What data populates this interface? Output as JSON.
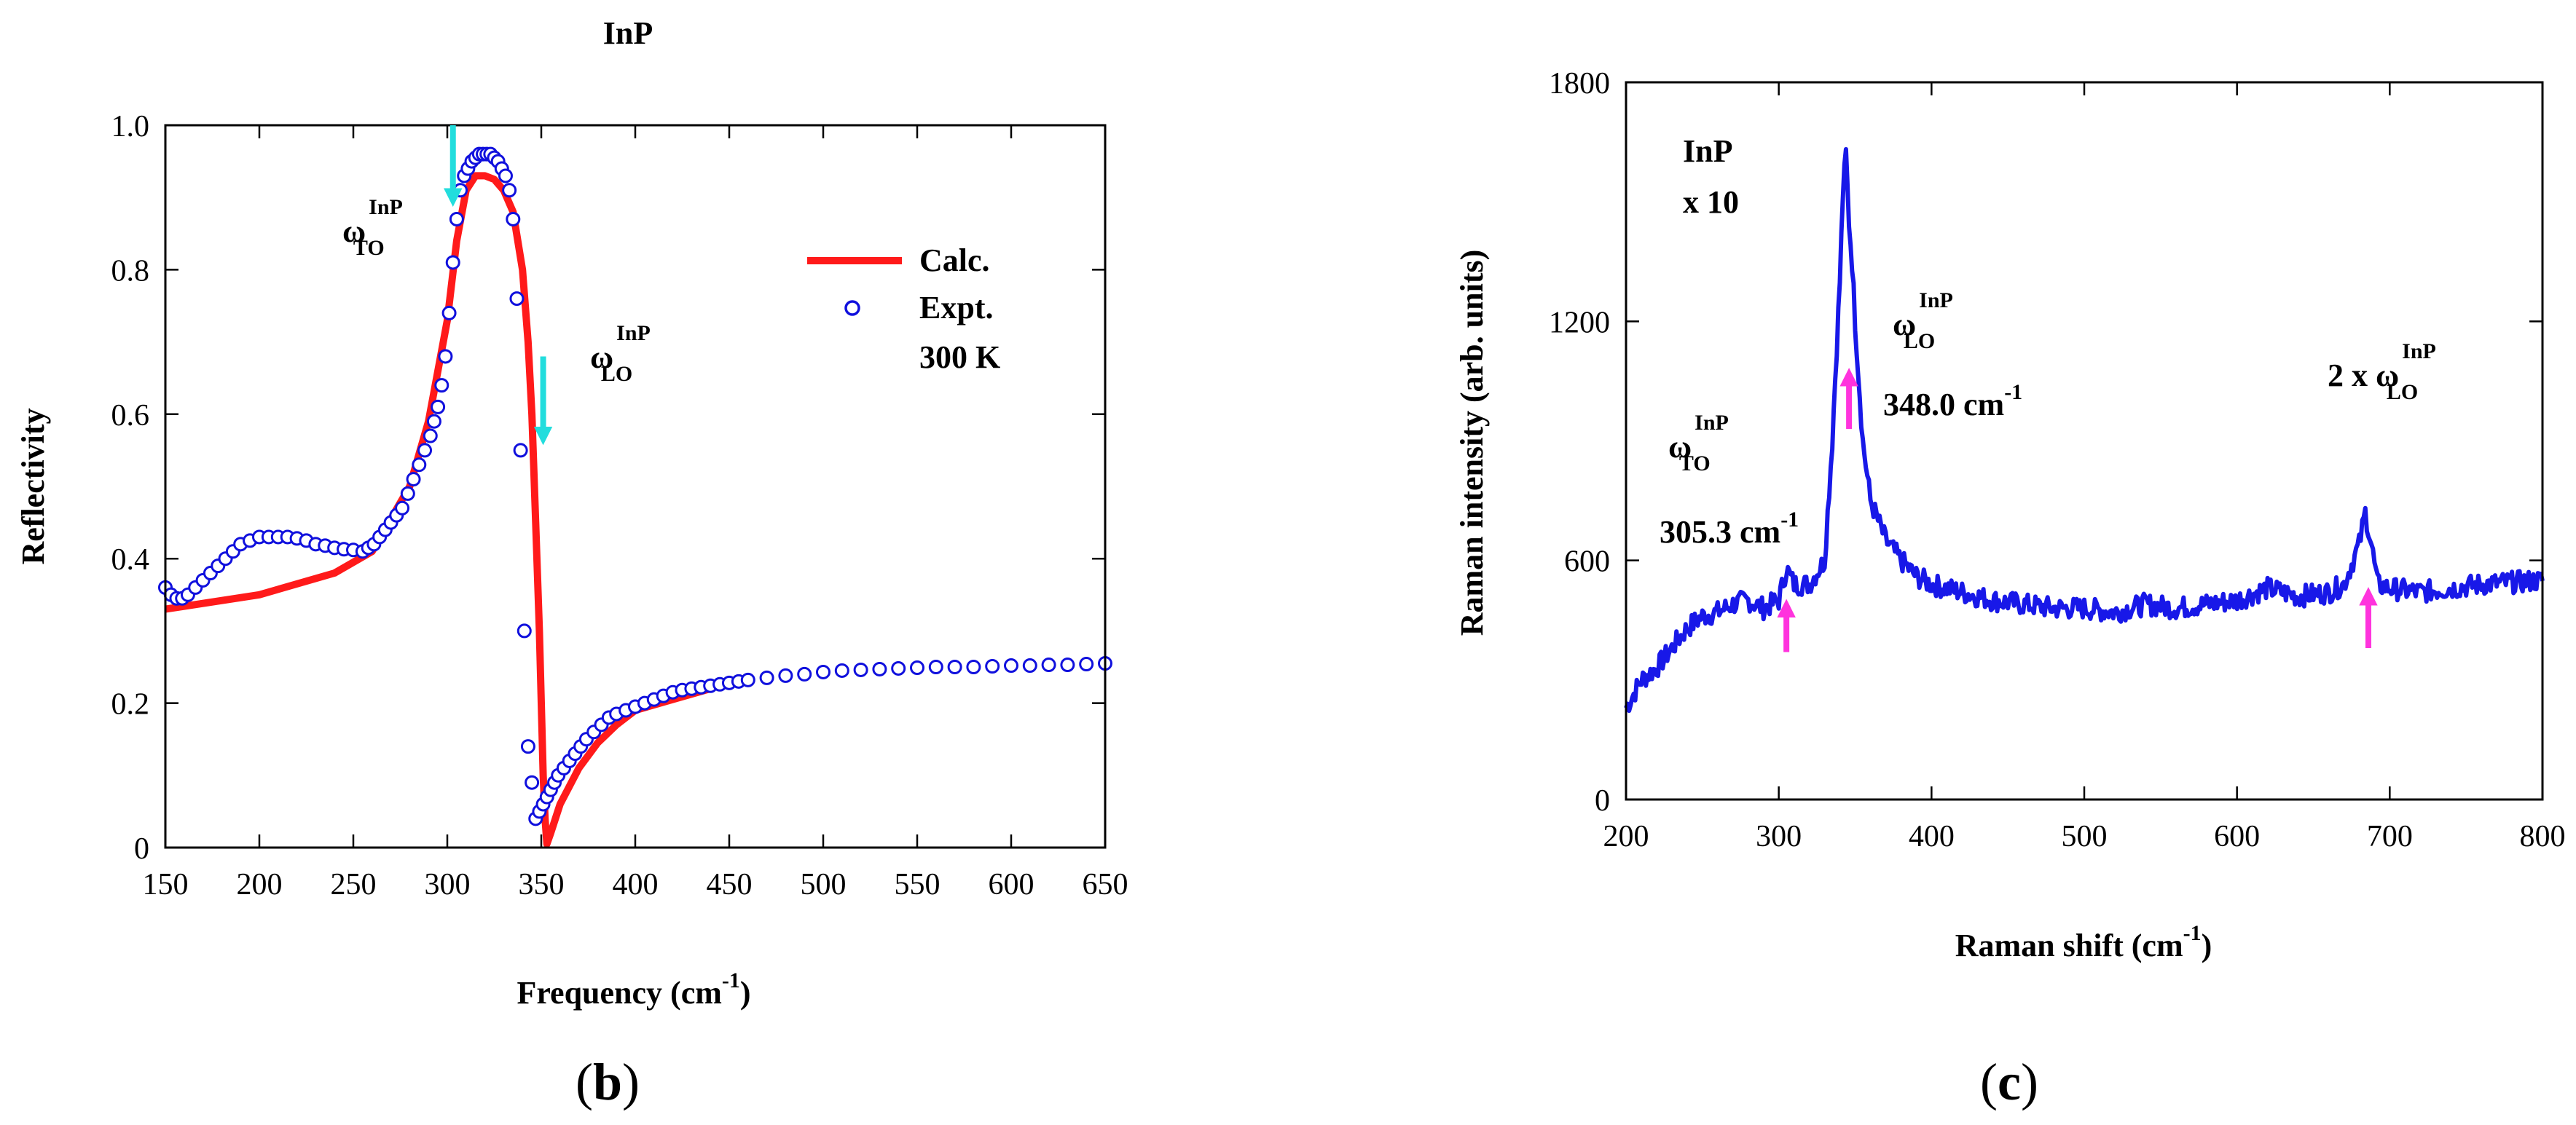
{
  "chart_data": [
    {
      "panel": "(b)",
      "panel_label": "b",
      "type": "line",
      "title": "InP",
      "xlabel": "Frequency (cm",
      "xlabel_sup": "-1",
      "xlabel_end": ")",
      "ylabel": "Reflectivity",
      "xlim": [
        150,
        650
      ],
      "ylim": [
        0,
        1.0
      ],
      "xticks": [
        150,
        200,
        250,
        300,
        350,
        400,
        450,
        500,
        550,
        600,
        650
      ],
      "yticks": [
        0,
        0.2,
        0.4,
        0.6,
        0.8,
        1.0
      ],
      "ytick_labels": [
        "0",
        "0.2",
        "0.4",
        "0.6",
        "0.8",
        "1.0"
      ],
      "legend": {
        "placement": "top-right",
        "entries": [
          {
            "label": "Calc.",
            "style": "solid-line",
            "color": "#ff1a1a"
          },
          {
            "label": "Expt.",
            "style": "open-circle",
            "color": "#1010dd"
          },
          {
            "label": "300 K",
            "style": "none"
          }
        ]
      },
      "series": [
        {
          "name": "Calc.",
          "color": "#ff1a1a",
          "x": [
            150,
            200,
            240,
            260,
            280,
            290,
            300,
            305,
            310,
            315,
            320,
            325,
            330,
            335,
            340,
            343,
            345,
            347,
            349,
            350,
            351,
            352,
            353,
            355,
            360,
            370,
            380,
            390,
            400,
            420,
            440
          ],
          "y": [
            0.33,
            0.35,
            0.38,
            0.41,
            0.5,
            0.59,
            0.73,
            0.84,
            0.91,
            0.93,
            0.93,
            0.925,
            0.91,
            0.88,
            0.8,
            0.7,
            0.6,
            0.45,
            0.3,
            0.2,
            0.1,
            0.04,
            0.005,
            0.02,
            0.06,
            0.11,
            0.145,
            0.17,
            0.19,
            0.205,
            0.22
          ]
        },
        {
          "name": "Expt.",
          "color": "#1010dd",
          "x": [
            150,
            153,
            156,
            159,
            162,
            166,
            170,
            174,
            178,
            182,
            186,
            190,
            195,
            200,
            205,
            210,
            215,
            220,
            225,
            230,
            235,
            240,
            245,
            250,
            255,
            258,
            261,
            264,
            267,
            270,
            273,
            276,
            279,
            282,
            285,
            288,
            291,
            293,
            295,
            297,
            299,
            301,
            303,
            305,
            307,
            309,
            311,
            313,
            315,
            317,
            319,
            321,
            323,
            325,
            327,
            329,
            331,
            333,
            335,
            337,
            339,
            341,
            343,
            345,
            347,
            349,
            351,
            353,
            355,
            357,
            359,
            362,
            365,
            368,
            371,
            374,
            378,
            382,
            386,
            390,
            395,
            400,
            405,
            410,
            415,
            420,
            425,
            430,
            435,
            440,
            445,
            450,
            455,
            460,
            470,
            480,
            490,
            500,
            510,
            520,
            530,
            540,
            550,
            560,
            570,
            580,
            590,
            600,
            610,
            620,
            630,
            640,
            650
          ],
          "y": [
            0.36,
            0.35,
            0.345,
            0.345,
            0.35,
            0.36,
            0.37,
            0.38,
            0.39,
            0.4,
            0.41,
            0.42,
            0.425,
            0.43,
            0.43,
            0.43,
            0.43,
            0.428,
            0.425,
            0.42,
            0.418,
            0.415,
            0.413,
            0.412,
            0.41,
            0.415,
            0.42,
            0.43,
            0.44,
            0.45,
            0.46,
            0.47,
            0.49,
            0.51,
            0.53,
            0.55,
            0.57,
            0.59,
            0.61,
            0.64,
            0.68,
            0.74,
            0.81,
            0.87,
            0.91,
            0.93,
            0.94,
            0.95,
            0.955,
            0.96,
            0.96,
            0.96,
            0.96,
            0.955,
            0.95,
            0.94,
            0.93,
            0.91,
            0.87,
            0.76,
            0.55,
            0.3,
            0.14,
            0.09,
            0.04,
            0.05,
            0.06,
            0.07,
            0.08,
            0.09,
            0.1,
            0.11,
            0.12,
            0.13,
            0.14,
            0.15,
            0.16,
            0.17,
            0.18,
            0.185,
            0.19,
            0.195,
            0.2,
            0.205,
            0.21,
            0.215,
            0.218,
            0.22,
            0.222,
            0.224,
            0.226,
            0.228,
            0.23,
            0.232,
            0.235,
            0.238,
            0.24,
            0.243,
            0.245,
            0.246,
            0.247,
            0.248,
            0.249,
            0.25,
            0.25,
            0.25,
            0.251,
            0.252,
            0.252,
            0.253,
            0.253,
            0.254,
            0.255
          ]
        }
      ],
      "annotations": [
        {
          "text": "ω",
          "sup": "InP",
          "sub": "TO",
          "near_x": 260,
          "near_y": 0.86
        },
        {
          "text": "ω",
          "sup": "InP",
          "sub": "LO",
          "near_x": 370,
          "near_y": 0.66
        }
      ],
      "arrows": [
        {
          "color": "#22dddd",
          "x": 303,
          "from_y": 1.0,
          "to_y": 0.9
        },
        {
          "color": "#22dddd",
          "x": 351,
          "from_y": 0.68,
          "to_y": 0.57
        }
      ]
    },
    {
      "panel": "(c)",
      "panel_label": "c",
      "type": "line",
      "title": "",
      "xlabel": "Raman shift (cm",
      "xlabel_sup": "-1",
      "xlabel_end": ")",
      "ylabel": "Raman intensity (arb. units)",
      "xlim": [
        200,
        800
      ],
      "ylim": [
        0,
        1800
      ],
      "xticks": [
        200,
        300,
        400,
        500,
        600,
        700,
        800
      ],
      "yticks": [
        0,
        600,
        1200,
        1800
      ],
      "inner_labels": [
        "InP",
        "x 10"
      ],
      "series": [
        {
          "name": "Raman spectrum",
          "color": "#1818e8",
          "x": [
            200,
            210,
            220,
            230,
            240,
            250,
            260,
            270,
            280,
            290,
            300,
            305,
            310,
            320,
            330,
            335,
            340,
            342,
            344,
            346,
            348,
            350,
            355,
            360,
            365,
            370,
            380,
            390,
            400,
            420,
            440,
            460,
            480,
            500,
            520,
            540,
            560,
            580,
            600,
            620,
            640,
            660,
            670,
            680,
            684,
            688,
            692,
            700,
            720,
            740,
            760,
            780,
            800
          ],
          "y": [
            230,
            300,
            330,
            380,
            430,
            460,
            470,
            490,
            500,
            480,
            500,
            580,
            540,
            540,
            600,
            900,
            1300,
            1520,
            1620,
            1450,
            1350,
            1200,
            900,
            750,
            700,
            650,
            600,
            560,
            540,
            520,
            500,
            490,
            480,
            480,
            470,
            490,
            480,
            490,
            500,
            530,
            510,
            520,
            540,
            640,
            720,
            640,
            540,
            530,
            520,
            530,
            540,
            545,
            550
          ]
        }
      ],
      "annotations": [
        {
          "text": "ω",
          "sup": "InP",
          "sub": "TO",
          "value_label": "305.3 cm",
          "value_sup": "-1"
        },
        {
          "text": "ω",
          "sup": "InP",
          "sub": "LO",
          "value_label": "348.0 cm",
          "value_sup": "-1"
        },
        {
          "text": "2 x ω",
          "sup": "InP",
          "sub": "LO"
        }
      ],
      "arrows": [
        {
          "color": "#ff33dd",
          "x": 305,
          "from_y": 370,
          "to_y": 480
        },
        {
          "color": "#ff33dd",
          "x": 346,
          "from_y": 930,
          "to_y": 1060
        },
        {
          "color": "#ff33dd",
          "x": 686,
          "from_y": 380,
          "to_y": 510
        }
      ]
    }
  ]
}
